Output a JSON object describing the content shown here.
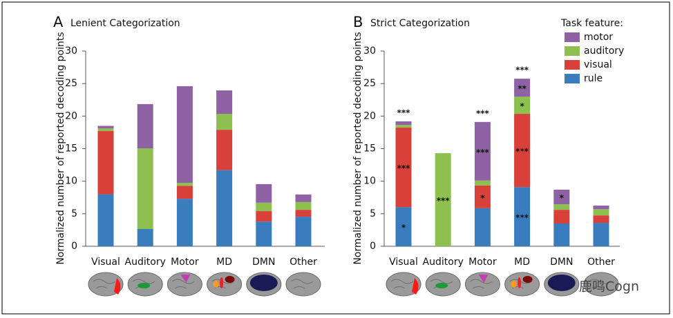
{
  "chart_data": [
    {
      "type": "bar",
      "stacked": true,
      "letter": "A",
      "title": "Lenient Categorization",
      "ylabel": "Normalized number of reported decoding points",
      "categories": [
        "Visual",
        "Auditory",
        "Motor",
        "MD",
        "DMN",
        "Other"
      ],
      "series": [
        {
          "name": "rule",
          "color": "#3a7dbf",
          "values": [
            8.0,
            2.65,
            7.3,
            11.7,
            3.8,
            4.55
          ]
        },
        {
          "name": "visual",
          "color": "#d9403a",
          "values": [
            9.7,
            0,
            2.0,
            6.2,
            1.6,
            1.05
          ]
        },
        {
          "name": "auditory",
          "color": "#8dc04f",
          "values": [
            0.4,
            12.4,
            0.45,
            2.45,
            1.3,
            1.2
          ]
        },
        {
          "name": "motor",
          "color": "#8e62a4",
          "values": [
            0.4,
            6.8,
            14.85,
            3.6,
            2.85,
            1.15
          ]
        }
      ],
      "ylim": [
        0,
        30
      ],
      "yticks": [
        0,
        5,
        10,
        15,
        20,
        25,
        30
      ]
    },
    {
      "type": "bar",
      "stacked": true,
      "letter": "B",
      "title": "Strict Categorization",
      "ylabel": "Normalized number of reported decoding points",
      "categories": [
        "Visual",
        "Auditory",
        "Motor",
        "MD",
        "DMN",
        "Other"
      ],
      "series": [
        {
          "name": "rule",
          "color": "#3a7dbf",
          "values": [
            6.0,
            0,
            5.85,
            9.1,
            3.5,
            3.6
          ],
          "stars": [
            "*",
            null,
            null,
            "***",
            null,
            null
          ]
        },
        {
          "name": "visual",
          "color": "#d9403a",
          "values": [
            12.25,
            0,
            3.5,
            11.25,
            2.1,
            1.15
          ],
          "stars": [
            "***",
            null,
            "*",
            "***",
            null,
            null
          ]
        },
        {
          "name": "auditory",
          "color": "#8dc04f",
          "values": [
            0.4,
            14.3,
            0.75,
            2.65,
            0.85,
            0.95
          ],
          "stars": [
            null,
            "***",
            null,
            "*",
            null,
            null
          ]
        },
        {
          "name": "motor",
          "color": "#8e62a4",
          "values": [
            0.55,
            0,
            9.0,
            2.75,
            2.25,
            0.55
          ],
          "stars": [
            null,
            null,
            "***",
            "**",
            "*",
            null
          ]
        }
      ],
      "total_labels": [
        "***",
        null,
        "***",
        "***",
        null,
        null
      ],
      "legend_title": "Task feature:",
      "legend": "top-right",
      "ylim": [
        0,
        30
      ],
      "yticks": [
        0,
        5,
        10,
        15,
        20,
        25,
        30
      ]
    }
  ],
  "watermark": "鹿鸣Cogn"
}
